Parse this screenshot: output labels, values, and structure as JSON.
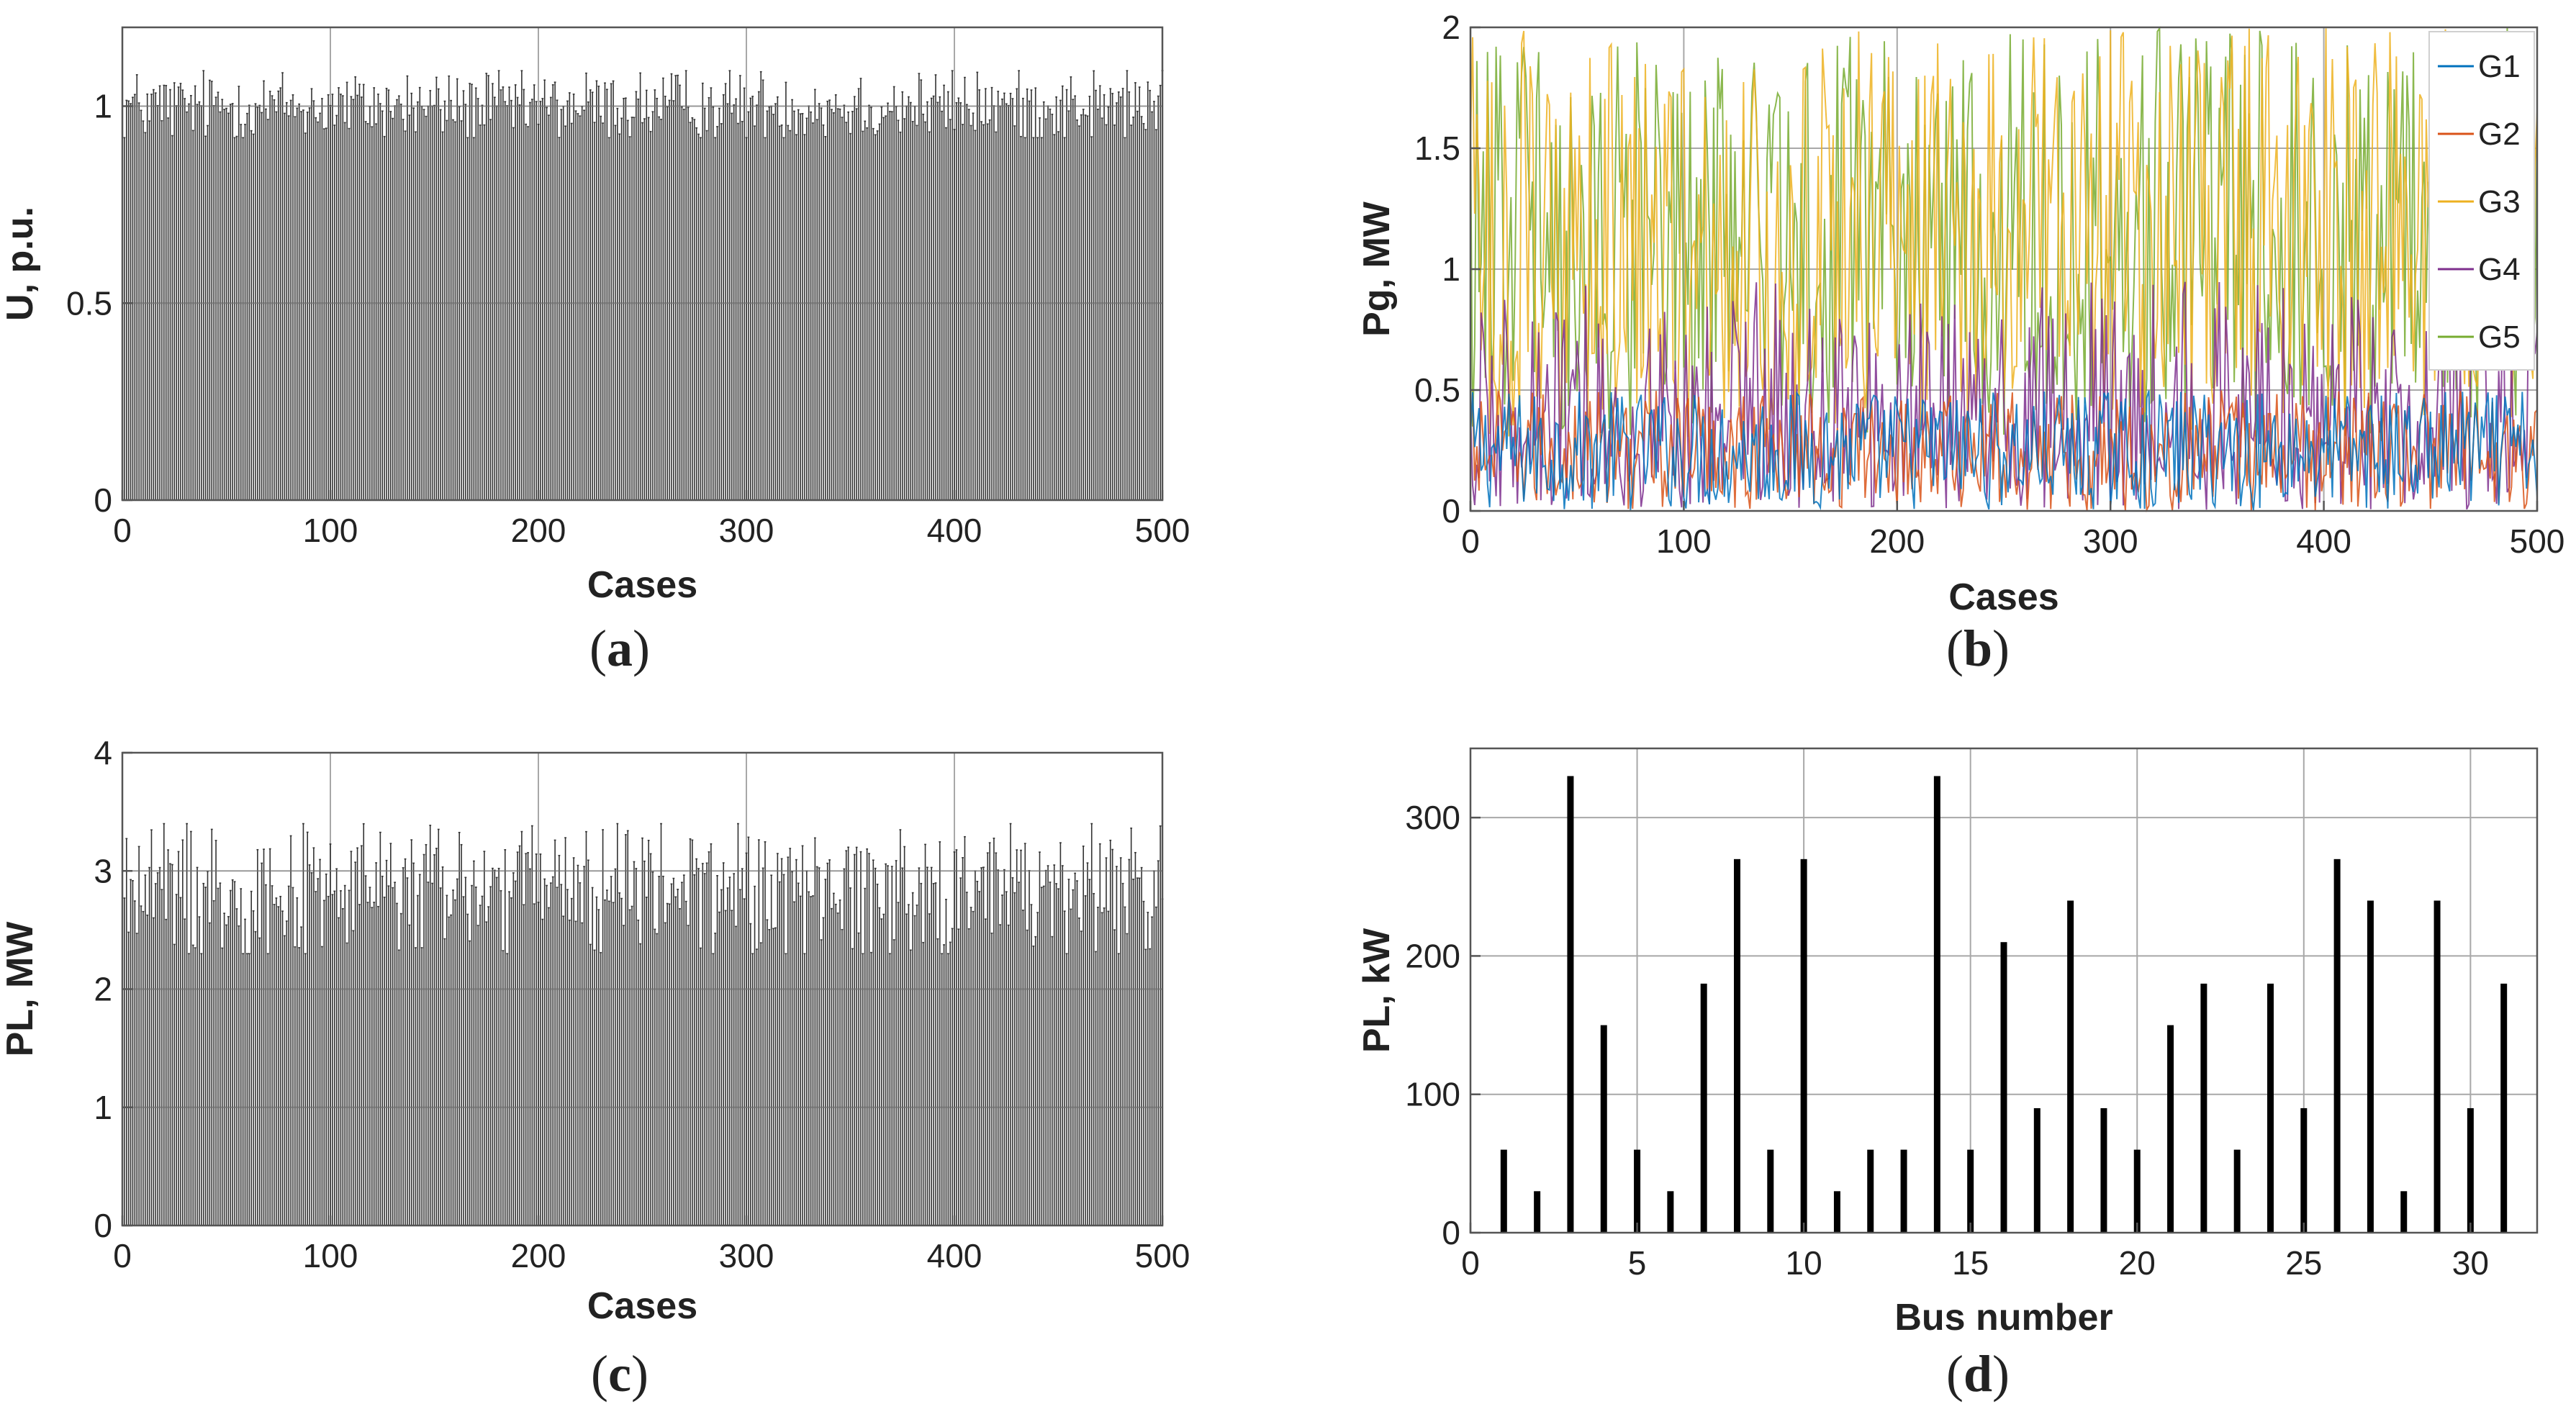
{
  "chart_data": [
    {
      "id": "a",
      "type": "bar",
      "caption": {
        "open": "(",
        "letter": "a",
        "close": ")"
      },
      "xlabel": "Cases",
      "ylabel": "U, p.u.",
      "xlim": [
        0,
        500
      ],
      "ylim": [
        0,
        1.2
      ],
      "xticks": [
        0,
        100,
        200,
        300,
        400,
        500
      ],
      "yticks": [
        0,
        0.5,
        1
      ],
      "ytick_labels": [
        "0",
        "0.5",
        "1"
      ],
      "grid": true,
      "n_cases": 500,
      "value_range": [
        0.92,
        1.09
      ],
      "value_mean": 1.0,
      "color": "#333333"
    },
    {
      "id": "b",
      "type": "line",
      "caption": {
        "open": "(",
        "letter": "b",
        "close": ")"
      },
      "xlabel": "Cases",
      "ylabel": "Pg, MW",
      "xlim": [
        0,
        500
      ],
      "ylim": [
        0,
        2
      ],
      "xticks": [
        0,
        100,
        200,
        300,
        400,
        500
      ],
      "yticks": [
        0,
        0.5,
        1,
        1.5,
        2
      ],
      "ytick_labels": [
        "0",
        "0.5",
        "1",
        "1.5",
        "2"
      ],
      "grid": true,
      "legend_position": "top-right",
      "series": [
        {
          "name": "G1",
          "color": "#0072BD",
          "range": [
            0,
            0.5
          ]
        },
        {
          "name": "G2",
          "color": "#D95319",
          "range": [
            0,
            0.5
          ]
        },
        {
          "name": "G3",
          "color": "#EDB120",
          "range": [
            0.5,
            2.0
          ]
        },
        {
          "name": "G4",
          "color": "#7E2F8E",
          "range": [
            0,
            1.0
          ]
        },
        {
          "name": "G5",
          "color": "#77AC30",
          "range": [
            0.5,
            2.0
          ]
        }
      ]
    },
    {
      "id": "c",
      "type": "bar",
      "caption": {
        "open": "(",
        "letter": "c",
        "close": ")"
      },
      "xlabel": "Cases",
      "ylabel": "PL, MW",
      "xlim": [
        0,
        500
      ],
      "ylim": [
        0,
        4
      ],
      "xticks": [
        0,
        100,
        200,
        300,
        400,
        500
      ],
      "yticks": [
        0,
        1,
        2,
        3,
        4
      ],
      "ytick_labels": [
        "0",
        "1",
        "2",
        "3",
        "4"
      ],
      "grid": true,
      "n_cases": 500,
      "value_range": [
        2.3,
        3.4
      ],
      "value_mean": 2.85,
      "color": "#333333"
    },
    {
      "id": "d",
      "type": "bar",
      "caption": {
        "open": "(",
        "letter": "d",
        "close": ")"
      },
      "xlabel": "Bus number",
      "ylabel": "PL, kW",
      "xlim": [
        0,
        32
      ],
      "ylim": [
        0,
        350
      ],
      "xticks": [
        0,
        5,
        10,
        15,
        20,
        25,
        30
      ],
      "yticks": [
        0,
        100,
        200,
        300
      ],
      "ytick_labels": [
        "0",
        "100",
        "200",
        "300"
      ],
      "grid": true,
      "categories": [
        1,
        2,
        3,
        4,
        5,
        6,
        7,
        8,
        9,
        10,
        11,
        12,
        13,
        14,
        15,
        16,
        17,
        18,
        19,
        20,
        21,
        22,
        23,
        24,
        25,
        26,
        27,
        28,
        29,
        30,
        31
      ],
      "values": [
        60,
        30,
        330,
        150,
        60,
        30,
        180,
        270,
        60,
        270,
        30,
        60,
        60,
        330,
        60,
        210,
        90,
        240,
        90,
        60,
        150,
        180,
        60,
        180,
        90,
        270,
        240,
        30,
        240,
        90,
        180
      ],
      "color": "#000000"
    }
  ]
}
